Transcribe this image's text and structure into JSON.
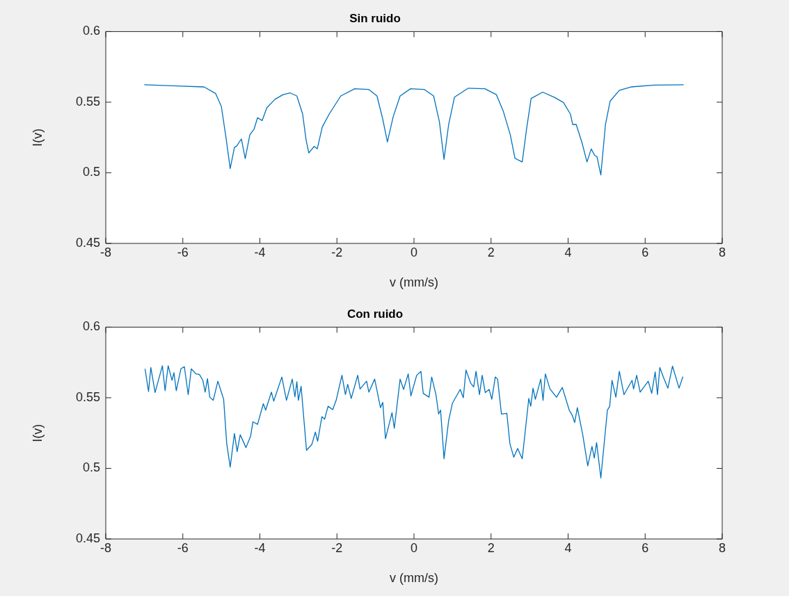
{
  "chart_data": [
    {
      "type": "line",
      "title": "Sin ruido",
      "xlabel": "v (mm/s)",
      "ylabel": "I(v)",
      "color": "#0072bd",
      "grid": false,
      "legend": false,
      "marker": "none",
      "line_style": "solid",
      "xlim": [
        -8,
        8
      ],
      "xticks": [
        -8,
        -6,
        -4,
        -2,
        0,
        2,
        4,
        6,
        8
      ],
      "ylim": [
        0.45,
        0.6
      ],
      "yticks": [
        0.45,
        0.5,
        0.55,
        0.6
      ],
      "x": [
        -7,
        -5.45,
        -5.15,
        -5.0,
        -4.88,
        -4.77,
        -4.66,
        -4.6,
        -4.48,
        -4.38,
        -4.26,
        -4.15,
        -4.06,
        -3.94,
        -3.82,
        -3.61,
        -3.4,
        -3.22,
        -3.04,
        -2.89,
        -2.8,
        -2.73,
        -2.59,
        -2.51,
        -2.38,
        -2.2,
        -1.9,
        -1.54,
        -1.17,
        -0.96,
        -0.81,
        -0.69,
        -0.54,
        -0.36,
        -0.09,
        0.27,
        0.51,
        0.66,
        0.78,
        0.9,
        1.05,
        1.41,
        1.84,
        2.14,
        2.32,
        2.5,
        2.62,
        2.71,
        2.81,
        2.92,
        3.04,
        3.34,
        3.64,
        3.88,
        4.06,
        4.12,
        4.21,
        4.36,
        4.49,
        4.6,
        4.69,
        4.75,
        4.85,
        4.97,
        5.09,
        5.33,
        5.63,
        6.23,
        7
      ],
      "values": [
        0.5623,
        0.5608,
        0.5562,
        0.547,
        0.525,
        0.503,
        0.518,
        0.519,
        0.524,
        0.51,
        0.527,
        0.531,
        0.539,
        0.537,
        0.546,
        0.552,
        0.5553,
        0.5566,
        0.5544,
        0.5416,
        0.5232,
        0.5141,
        0.5187,
        0.517,
        0.5324,
        0.5416,
        0.5544,
        0.5595,
        0.559,
        0.5544,
        0.5379,
        0.5218,
        0.5397,
        0.5544,
        0.5595,
        0.559,
        0.5544,
        0.5361,
        0.5095,
        0.5342,
        0.5535,
        0.5599,
        0.5595,
        0.5553,
        0.5434,
        0.5269,
        0.5104,
        0.509,
        0.5077,
        0.5306,
        0.5526,
        0.5571,
        0.5535,
        0.5498,
        0.5416,
        0.5342,
        0.5342,
        0.5214,
        0.5077,
        0.5169,
        0.5123,
        0.5114,
        0.4985,
        0.5342,
        0.5507,
        0.5584,
        0.5608,
        0.5621,
        0.5623
      ]
    },
    {
      "type": "line",
      "title": "Con ruido",
      "xlabel": "v (mm/s)",
      "ylabel": "I(v)",
      "color": "#0072bd",
      "grid": false,
      "legend": false,
      "marker": "none",
      "line_style": "solid",
      "xlim": [
        -8,
        8
      ],
      "xticks": [
        -8,
        -6,
        -4,
        -2,
        0,
        2,
        4,
        6,
        8
      ],
      "ylim": [
        0.45,
        0.6
      ],
      "yticks": [
        0.45,
        0.5,
        0.55,
        0.6
      ],
      "x": [
        -6.98,
        -6.89,
        -6.83,
        -6.72,
        -6.53,
        -6.46,
        -6.38,
        -6.28,
        -6.23,
        -6.17,
        -6.05,
        -5.96,
        -5.86,
        -5.78,
        -5.66,
        -5.57,
        -5.48,
        -5.42,
        -5.36,
        -5.3,
        -5.21,
        -5.09,
        -5.0,
        -4.94,
        -4.86,
        -4.77,
        -4.66,
        -4.59,
        -4.51,
        -4.36,
        -4.24,
        -4.18,
        -4.06,
        -3.91,
        -3.85,
        -3.7,
        -3.64,
        -3.43,
        -3.31,
        -3.16,
        -3.09,
        -3.04,
        -3.0,
        -2.93,
        -2.79,
        -2.65,
        -2.56,
        -2.5,
        -2.39,
        -2.32,
        -2.23,
        -2.11,
        -2.02,
        -1.87,
        -1.78,
        -1.72,
        -1.63,
        -1.46,
        -1.4,
        -1.23,
        -1.17,
        -1.02,
        -0.87,
        -0.81,
        -0.74,
        -0.57,
        -0.51,
        -0.36,
        -0.27,
        -0.15,
        -0.08,
        0.07,
        0.18,
        0.24,
        0.39,
        0.46,
        0.57,
        0.64,
        0.69,
        0.78,
        0.9,
        1.0,
        1.2,
        1.28,
        1.35,
        1.47,
        1.55,
        1.61,
        1.7,
        1.77,
        1.85,
        1.95,
        2.02,
        2.11,
        2.17,
        2.27,
        2.41,
        2.49,
        2.59,
        2.69,
        2.81,
        2.98,
        3.03,
        3.09,
        3.15,
        3.29,
        3.35,
        3.41,
        3.53,
        3.7,
        3.85,
        4.03,
        4.11,
        4.17,
        4.24,
        4.38,
        4.51,
        4.62,
        4.68,
        4.74,
        4.85,
        5.02,
        5.08,
        5.14,
        5.24,
        5.33,
        5.45,
        5.66,
        5.7,
        5.78,
        5.87,
        6.08,
        6.17,
        6.26,
        6.32,
        6.38,
        6.5,
        6.59,
        6.71,
        6.88,
        6.98
      ],
      "values": [
        0.5705,
        0.5544,
        0.5714,
        0.5537,
        0.5727,
        0.555,
        0.5727,
        0.5623,
        0.5677,
        0.555,
        0.5705,
        0.572,
        0.5522,
        0.5705,
        0.5669,
        0.5665,
        0.5623,
        0.554,
        0.5636,
        0.5504,
        0.5482,
        0.5617,
        0.554,
        0.5489,
        0.5174,
        0.5009,
        0.5247,
        0.5119,
        0.5238,
        0.5147,
        0.5229,
        0.533,
        0.5312,
        0.5458,
        0.5412,
        0.554,
        0.5476,
        0.5647,
        0.5482,
        0.5632,
        0.5507,
        0.5614,
        0.5482,
        0.5581,
        0.5128,
        0.517,
        0.5257,
        0.5192,
        0.5366,
        0.5348,
        0.544,
        0.5416,
        0.5482,
        0.5659,
        0.5522,
        0.5595,
        0.5495,
        0.5659,
        0.5562,
        0.5617,
        0.554,
        0.5632,
        0.543,
        0.5467,
        0.521,
        0.5394,
        0.5284,
        0.5632,
        0.5559,
        0.5669,
        0.5513,
        0.5659,
        0.5687,
        0.5531,
        0.5504,
        0.5647,
        0.5522,
        0.5385,
        0.5412,
        0.5068,
        0.5339,
        0.5463,
        0.5559,
        0.55,
        0.5696,
        0.5604,
        0.5577,
        0.5687,
        0.5522,
        0.5659,
        0.5537,
        0.5559,
        0.5489,
        0.5647,
        0.5632,
        0.5385,
        0.539,
        0.5174,
        0.5079,
        0.5141,
        0.5068,
        0.5495,
        0.544,
        0.5568,
        0.5489,
        0.5632,
        0.5482,
        0.5669,
        0.5562,
        0.5504,
        0.5573,
        0.5412,
        0.5375,
        0.5324,
        0.543,
        0.5238,
        0.5018,
        0.5156,
        0.5073,
        0.5183,
        0.4932,
        0.5412,
        0.544,
        0.5623,
        0.5504,
        0.5687,
        0.5522,
        0.5623,
        0.5562,
        0.5659,
        0.554,
        0.5617,
        0.5531,
        0.5683,
        0.5522,
        0.5714,
        0.5628,
        0.5568,
        0.5724,
        0.5568,
        0.565
      ]
    }
  ]
}
